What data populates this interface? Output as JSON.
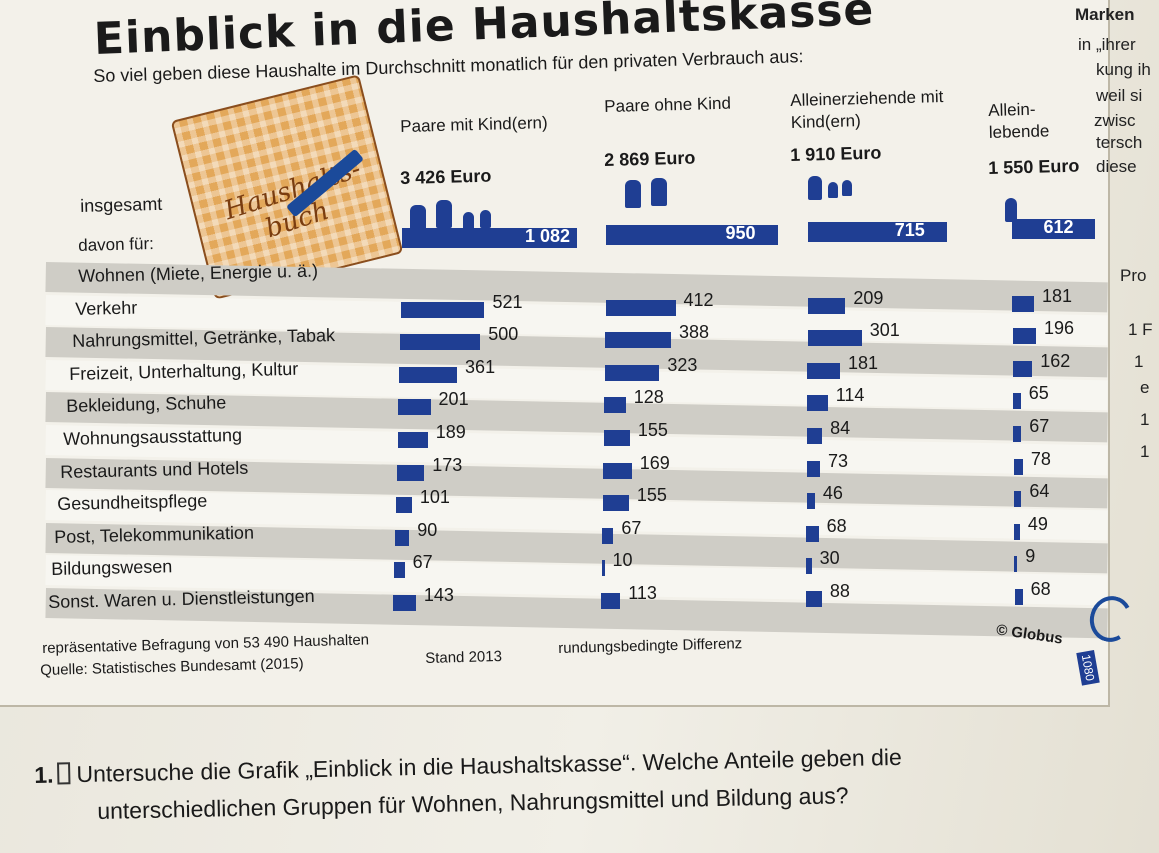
{
  "page": {
    "right_column_text": [
      "Marken",
      "in „ihrer",
      "kung ih",
      "weil si",
      "zwisc",
      "tersch",
      "diese",
      "Pro",
      "1 F",
      "1",
      "e",
      "1",
      "1"
    ]
  },
  "figure": {
    "title": "Einblick in die Haushaltskasse",
    "subtitle": "Einblick in die Haushaltskasse",
    "intro": "So viel geben diese Haushalte im Durchschnitt monatlich für den privaten Verbrauch aus:",
    "booklet_line1": "Haushalts-",
    "booklet_line2": "buch",
    "row_header_total": "insgesamt",
    "row_header_breakdown": "davon für:",
    "footer_sample": "repräsentative Befragung von 53 490 Haushalten",
    "footer_source": "Quelle: Statistisches Bundesamt (2015)",
    "footer_stand": "Stand 2013",
    "footer_rounding": "rundungsbedingte Differenz",
    "footer_globus": "© Globus",
    "footer_code": "1080"
  },
  "chart_data": {
    "type": "bar",
    "title": "Einblick in die Haushaltskasse",
    "categories": [
      "Wohnen (Miete, Energie u. ä.)",
      "Verkehr",
      "Nahrungsmittel, Getränke, Tabak",
      "Freizeit, Unterhaltung, Kultur",
      "Bekleidung, Schuhe",
      "Wohnungsausstattung",
      "Restaurants und Hotels",
      "Gesundheitspflege",
      "Post, Telekommunikation",
      "Bildungswesen",
      "Sonst. Waren u. Dienstleistungen"
    ],
    "series": [
      {
        "name": "Paare mit Kind(ern)",
        "total": "3 426 Euro",
        "values": [
          1082,
          521,
          500,
          361,
          201,
          189,
          173,
          101,
          90,
          67,
          143
        ]
      },
      {
        "name": "Paare ohne Kind",
        "total": "2 869 Euro",
        "values": [
          950,
          412,
          388,
          323,
          128,
          155,
          169,
          155,
          67,
          10,
          113
        ]
      },
      {
        "name": "Alleinerziehende mit Kind(ern)",
        "total": "1 910 Euro",
        "values": [
          715,
          209,
          301,
          181,
          114,
          84,
          73,
          46,
          68,
          30,
          88
        ]
      },
      {
        "name": "Allein-lebende",
        "total": "1 550 Euro",
        "values": [
          612,
          181,
          196,
          162,
          65,
          67,
          78,
          64,
          49,
          9,
          68
        ]
      }
    ],
    "unit": "Euro",
    "xlabel": "",
    "ylabel": ""
  },
  "task": {
    "number": "1.",
    "line1": "Untersuche die Grafik „Einblick in die Haushaltskasse“. Welche Anteile geben die",
    "line2": "unterschiedlichen Gruppen für Wohnen, Nahrungsmittel und Bildung aus?"
  },
  "colors": {
    "bar": "#1f3e93",
    "row_grey": "#cfcdc6",
    "page": "#f3f1ea"
  }
}
